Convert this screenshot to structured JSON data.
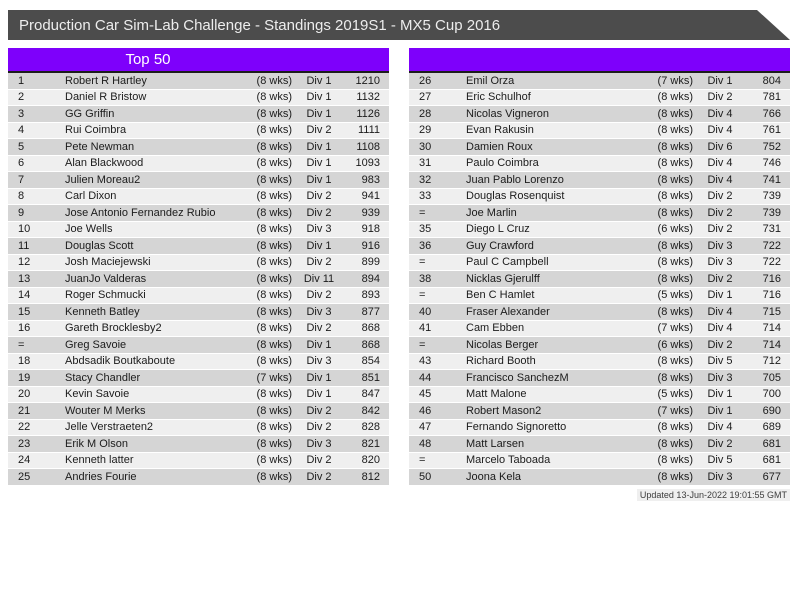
{
  "window": {
    "title": "Production Car Sim-Lab Challenge - Standings 2019S1 - MX5 Cup 2016"
  },
  "colors": {
    "titlebar": "#4c4c4c",
    "accent_purple": "#7e00fb",
    "row_light": "#efefef",
    "row_dark": "#d5d5d5"
  },
  "tables": {
    "left": {
      "header": "Top 50",
      "rows": [
        {
          "pos": "1",
          "name": "Robert R Hartley",
          "weeks": "(8 wks)",
          "div": "Div 1",
          "pts": "1210"
        },
        {
          "pos": "2",
          "name": "Daniel R Bristow",
          "weeks": "(8 wks)",
          "div": "Div 1",
          "pts": "1132"
        },
        {
          "pos": "3",
          "name": "GG Griffin",
          "weeks": "(8 wks)",
          "div": "Div 1",
          "pts": "1126"
        },
        {
          "pos": "4",
          "name": "Rui Coimbra",
          "weeks": "(8 wks)",
          "div": "Div 2",
          "pts": "1111"
        },
        {
          "pos": "5",
          "name": "Pete Newman",
          "weeks": "(8 wks)",
          "div": "Div 1",
          "pts": "1108"
        },
        {
          "pos": "6",
          "name": "Alan Blackwood",
          "weeks": "(8 wks)",
          "div": "Div 1",
          "pts": "1093"
        },
        {
          "pos": "7",
          "name": "Julien Moreau2",
          "weeks": "(8 wks)",
          "div": "Div 1",
          "pts": "983"
        },
        {
          "pos": "8",
          "name": "Carl Dixon",
          "weeks": "(8 wks)",
          "div": "Div 2",
          "pts": "941"
        },
        {
          "pos": "9",
          "name": "Jose Antonio Fernandez Rubio",
          "weeks": "(8 wks)",
          "div": "Div 2",
          "pts": "939"
        },
        {
          "pos": "10",
          "name": "Joe Wells",
          "weeks": "(8 wks)",
          "div": "Div 3",
          "pts": "918"
        },
        {
          "pos": "11",
          "name": "Douglas Scott",
          "weeks": "(8 wks)",
          "div": "Div 1",
          "pts": "916"
        },
        {
          "pos": "12",
          "name": "Josh Maciejewski",
          "weeks": "(8 wks)",
          "div": "Div 2",
          "pts": "899"
        },
        {
          "pos": "13",
          "name": "JuanJo Valderas",
          "weeks": "(8 wks)",
          "div": "Div 11",
          "pts": "894"
        },
        {
          "pos": "14",
          "name": "Roger Schmucki",
          "weeks": "(8 wks)",
          "div": "Div 2",
          "pts": "893"
        },
        {
          "pos": "15",
          "name": "Kenneth Batley",
          "weeks": "(8 wks)",
          "div": "Div 3",
          "pts": "877"
        },
        {
          "pos": "16",
          "name": "Gareth Brocklesby2",
          "weeks": "(8 wks)",
          "div": "Div 2",
          "pts": "868"
        },
        {
          "pos": "=",
          "name": "Greg Savoie",
          "weeks": "(8 wks)",
          "div": "Div 1",
          "pts": "868"
        },
        {
          "pos": "18",
          "name": "Abdsadik Boutkaboute",
          "weeks": "(8 wks)",
          "div": "Div 3",
          "pts": "854"
        },
        {
          "pos": "19",
          "name": "Stacy Chandler",
          "weeks": "(7 wks)",
          "div": "Div 1",
          "pts": "851"
        },
        {
          "pos": "20",
          "name": "Kevin Savoie",
          "weeks": "(8 wks)",
          "div": "Div 1",
          "pts": "847"
        },
        {
          "pos": "21",
          "name": "Wouter M Merks",
          "weeks": "(8 wks)",
          "div": "Div 2",
          "pts": "842"
        },
        {
          "pos": "22",
          "name": "Jelle Verstraeten2",
          "weeks": "(8 wks)",
          "div": "Div 2",
          "pts": "828"
        },
        {
          "pos": "23",
          "name": "Erik M Olson",
          "weeks": "(8 wks)",
          "div": "Div 3",
          "pts": "821"
        },
        {
          "pos": "24",
          "name": "Kenneth latter",
          "weeks": "(8 wks)",
          "div": "Div 2",
          "pts": "820"
        },
        {
          "pos": "25",
          "name": "Andries Fourie",
          "weeks": "(8 wks)",
          "div": "Div 2",
          "pts": "812"
        }
      ]
    },
    "right": {
      "header": "",
      "rows": [
        {
          "pos": "26",
          "name": "Emil Orza",
          "weeks": "(7 wks)",
          "div": "Div 1",
          "pts": "804"
        },
        {
          "pos": "27",
          "name": "Eric Schulhof",
          "weeks": "(8 wks)",
          "div": "Div 2",
          "pts": "781"
        },
        {
          "pos": "28",
          "name": "Nicolas Vigneron",
          "weeks": "(8 wks)",
          "div": "Div 4",
          "pts": "766"
        },
        {
          "pos": "29",
          "name": "Evan Rakusin",
          "weeks": "(8 wks)",
          "div": "Div 4",
          "pts": "761"
        },
        {
          "pos": "30",
          "name": "Damien Roux",
          "weeks": "(8 wks)",
          "div": "Div 6",
          "pts": "752"
        },
        {
          "pos": "31",
          "name": "Paulo Coimbra",
          "weeks": "(8 wks)",
          "div": "Div 4",
          "pts": "746"
        },
        {
          "pos": "32",
          "name": "Juan Pablo Lorenzo",
          "weeks": "(8 wks)",
          "div": "Div 4",
          "pts": "741"
        },
        {
          "pos": "33",
          "name": "Douglas Rosenquist",
          "weeks": "(8 wks)",
          "div": "Div 2",
          "pts": "739"
        },
        {
          "pos": "=",
          "name": "Joe Marlin",
          "weeks": "(8 wks)",
          "div": "Div 2",
          "pts": "739"
        },
        {
          "pos": "35",
          "name": "Diego L Cruz",
          "weeks": "(6 wks)",
          "div": "Div 2",
          "pts": "731"
        },
        {
          "pos": "36",
          "name": "Guy Crawford",
          "weeks": "(8 wks)",
          "div": "Div 3",
          "pts": "722"
        },
        {
          "pos": "=",
          "name": "Paul C Campbell",
          "weeks": "(8 wks)",
          "div": "Div 3",
          "pts": "722"
        },
        {
          "pos": "38",
          "name": "Nicklas Gjerulff",
          "weeks": "(8 wks)",
          "div": "Div 2",
          "pts": "716"
        },
        {
          "pos": "=",
          "name": "Ben C Hamlet",
          "weeks": "(5 wks)",
          "div": "Div 1",
          "pts": "716"
        },
        {
          "pos": "40",
          "name": "Fraser Alexander",
          "weeks": "(8 wks)",
          "div": "Div 4",
          "pts": "715"
        },
        {
          "pos": "41",
          "name": "Cam Ebben",
          "weeks": "(7 wks)",
          "div": "Div 4",
          "pts": "714"
        },
        {
          "pos": "=",
          "name": "Nicolas Berger",
          "weeks": "(6 wks)",
          "div": "Div 2",
          "pts": "714"
        },
        {
          "pos": "43",
          "name": "Richard Booth",
          "weeks": "(8 wks)",
          "div": "Div 5",
          "pts": "712"
        },
        {
          "pos": "44",
          "name": "Francisco SanchezM",
          "weeks": "(8 wks)",
          "div": "Div 3",
          "pts": "705"
        },
        {
          "pos": "45",
          "name": "Matt Malone",
          "weeks": "(5 wks)",
          "div": "Div 1",
          "pts": "700"
        },
        {
          "pos": "46",
          "name": "Robert Mason2",
          "weeks": "(7 wks)",
          "div": "Div 1",
          "pts": "690"
        },
        {
          "pos": "47",
          "name": "Fernando Signoretto",
          "weeks": "(8 wks)",
          "div": "Div 4",
          "pts": "689"
        },
        {
          "pos": "48",
          "name": "Matt Larsen",
          "weeks": "(8 wks)",
          "div": "Div 2",
          "pts": "681"
        },
        {
          "pos": "=",
          "name": "Marcelo Taboada",
          "weeks": "(8 wks)",
          "div": "Div 5",
          "pts": "681"
        },
        {
          "pos": "50",
          "name": "Joona Kela",
          "weeks": "(8 wks)",
          "div": "Div 3",
          "pts": "677"
        }
      ]
    }
  },
  "footer": {
    "updated": "Updated 13-Jun-2022 19:01:55 GMT"
  }
}
